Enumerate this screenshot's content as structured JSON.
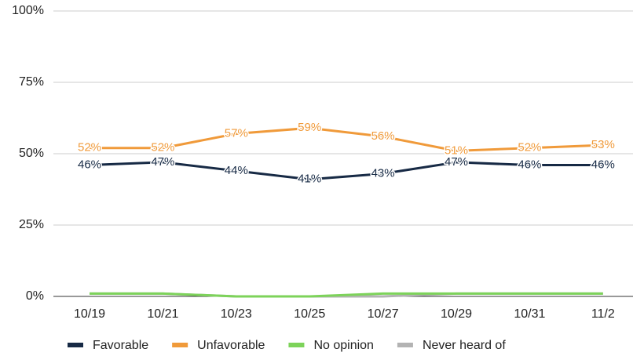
{
  "chart_data": {
    "type": "line",
    "categories": [
      "10/19",
      "10/21",
      "10/23",
      "10/25",
      "10/27",
      "10/29",
      "10/31",
      "11/2"
    ],
    "series": [
      {
        "name": "Favorable",
        "color": "#172a45",
        "values": [
          46,
          47,
          44,
          41,
          43,
          47,
          46,
          46
        ],
        "value_labels": [
          "46%",
          "47%",
          "44%",
          "41%",
          "43%",
          "47%",
          "46%",
          "46%"
        ]
      },
      {
        "name": "Unfavorable",
        "color": "#f09a3a",
        "values": [
          52,
          52,
          57,
          59,
          56,
          51,
          52,
          53
        ],
        "value_labels": [
          "52%",
          "52%",
          "57%",
          "59%",
          "56%",
          "51%",
          "52%",
          "53%"
        ]
      },
      {
        "name": "No opinion",
        "color": "#7dd35a",
        "values": [
          1,
          1,
          0,
          0,
          1,
          1,
          1,
          1
        ]
      },
      {
        "name": "Never heard of",
        "color": "#b3b3b3",
        "values": [
          1,
          1,
          0,
          0,
          0,
          1,
          1,
          1
        ]
      }
    ],
    "ylim": [
      0,
      100
    ],
    "yticks": [
      {
        "value": 0,
        "label": "0%"
      },
      {
        "value": 25,
        "label": "25%"
      },
      {
        "value": 50,
        "label": "50%"
      },
      {
        "value": 75,
        "label": "75%"
      },
      {
        "value": 100,
        "label": "100%"
      }
    ],
    "grid": true,
    "legend": "bottom"
  }
}
